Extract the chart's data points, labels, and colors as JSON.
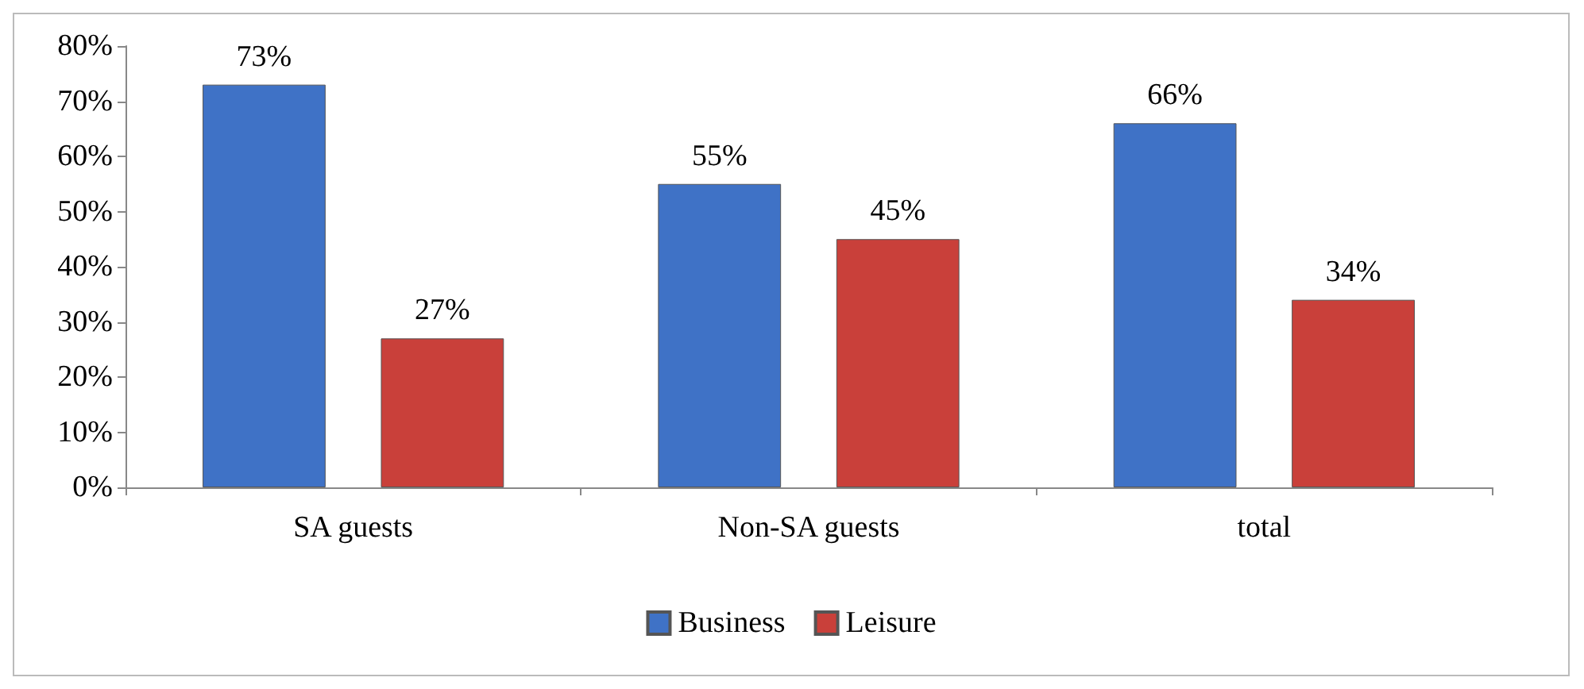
{
  "chart_data": {
    "type": "bar",
    "categories": [
      "SA guests",
      "Non-SA guests",
      "total"
    ],
    "series": [
      {
        "name": "Business",
        "color": "#3f72c6",
        "values": [
          73,
          55,
          66
        ],
        "value_labels": [
          "73%",
          "55%",
          "66%"
        ]
      },
      {
        "name": "Leisure",
        "color": "#c9403a",
        "values": [
          27,
          45,
          34
        ],
        "value_labels": [
          "27%",
          "45%",
          "34%"
        ]
      }
    ],
    "ylim": [
      0,
      80
    ],
    "yticks": [
      {
        "value": 0,
        "label": "0%"
      },
      {
        "value": 10,
        "label": "10%"
      },
      {
        "value": 20,
        "label": "20%"
      },
      {
        "value": 30,
        "label": "30%"
      },
      {
        "value": 40,
        "label": "40%"
      },
      {
        "value": 50,
        "label": "50%"
      },
      {
        "value": 60,
        "label": "60%"
      },
      {
        "value": 70,
        "label": "70%"
      },
      {
        "value": 80,
        "label": "80%"
      }
    ],
    "grid": false,
    "legend": "bottom"
  }
}
